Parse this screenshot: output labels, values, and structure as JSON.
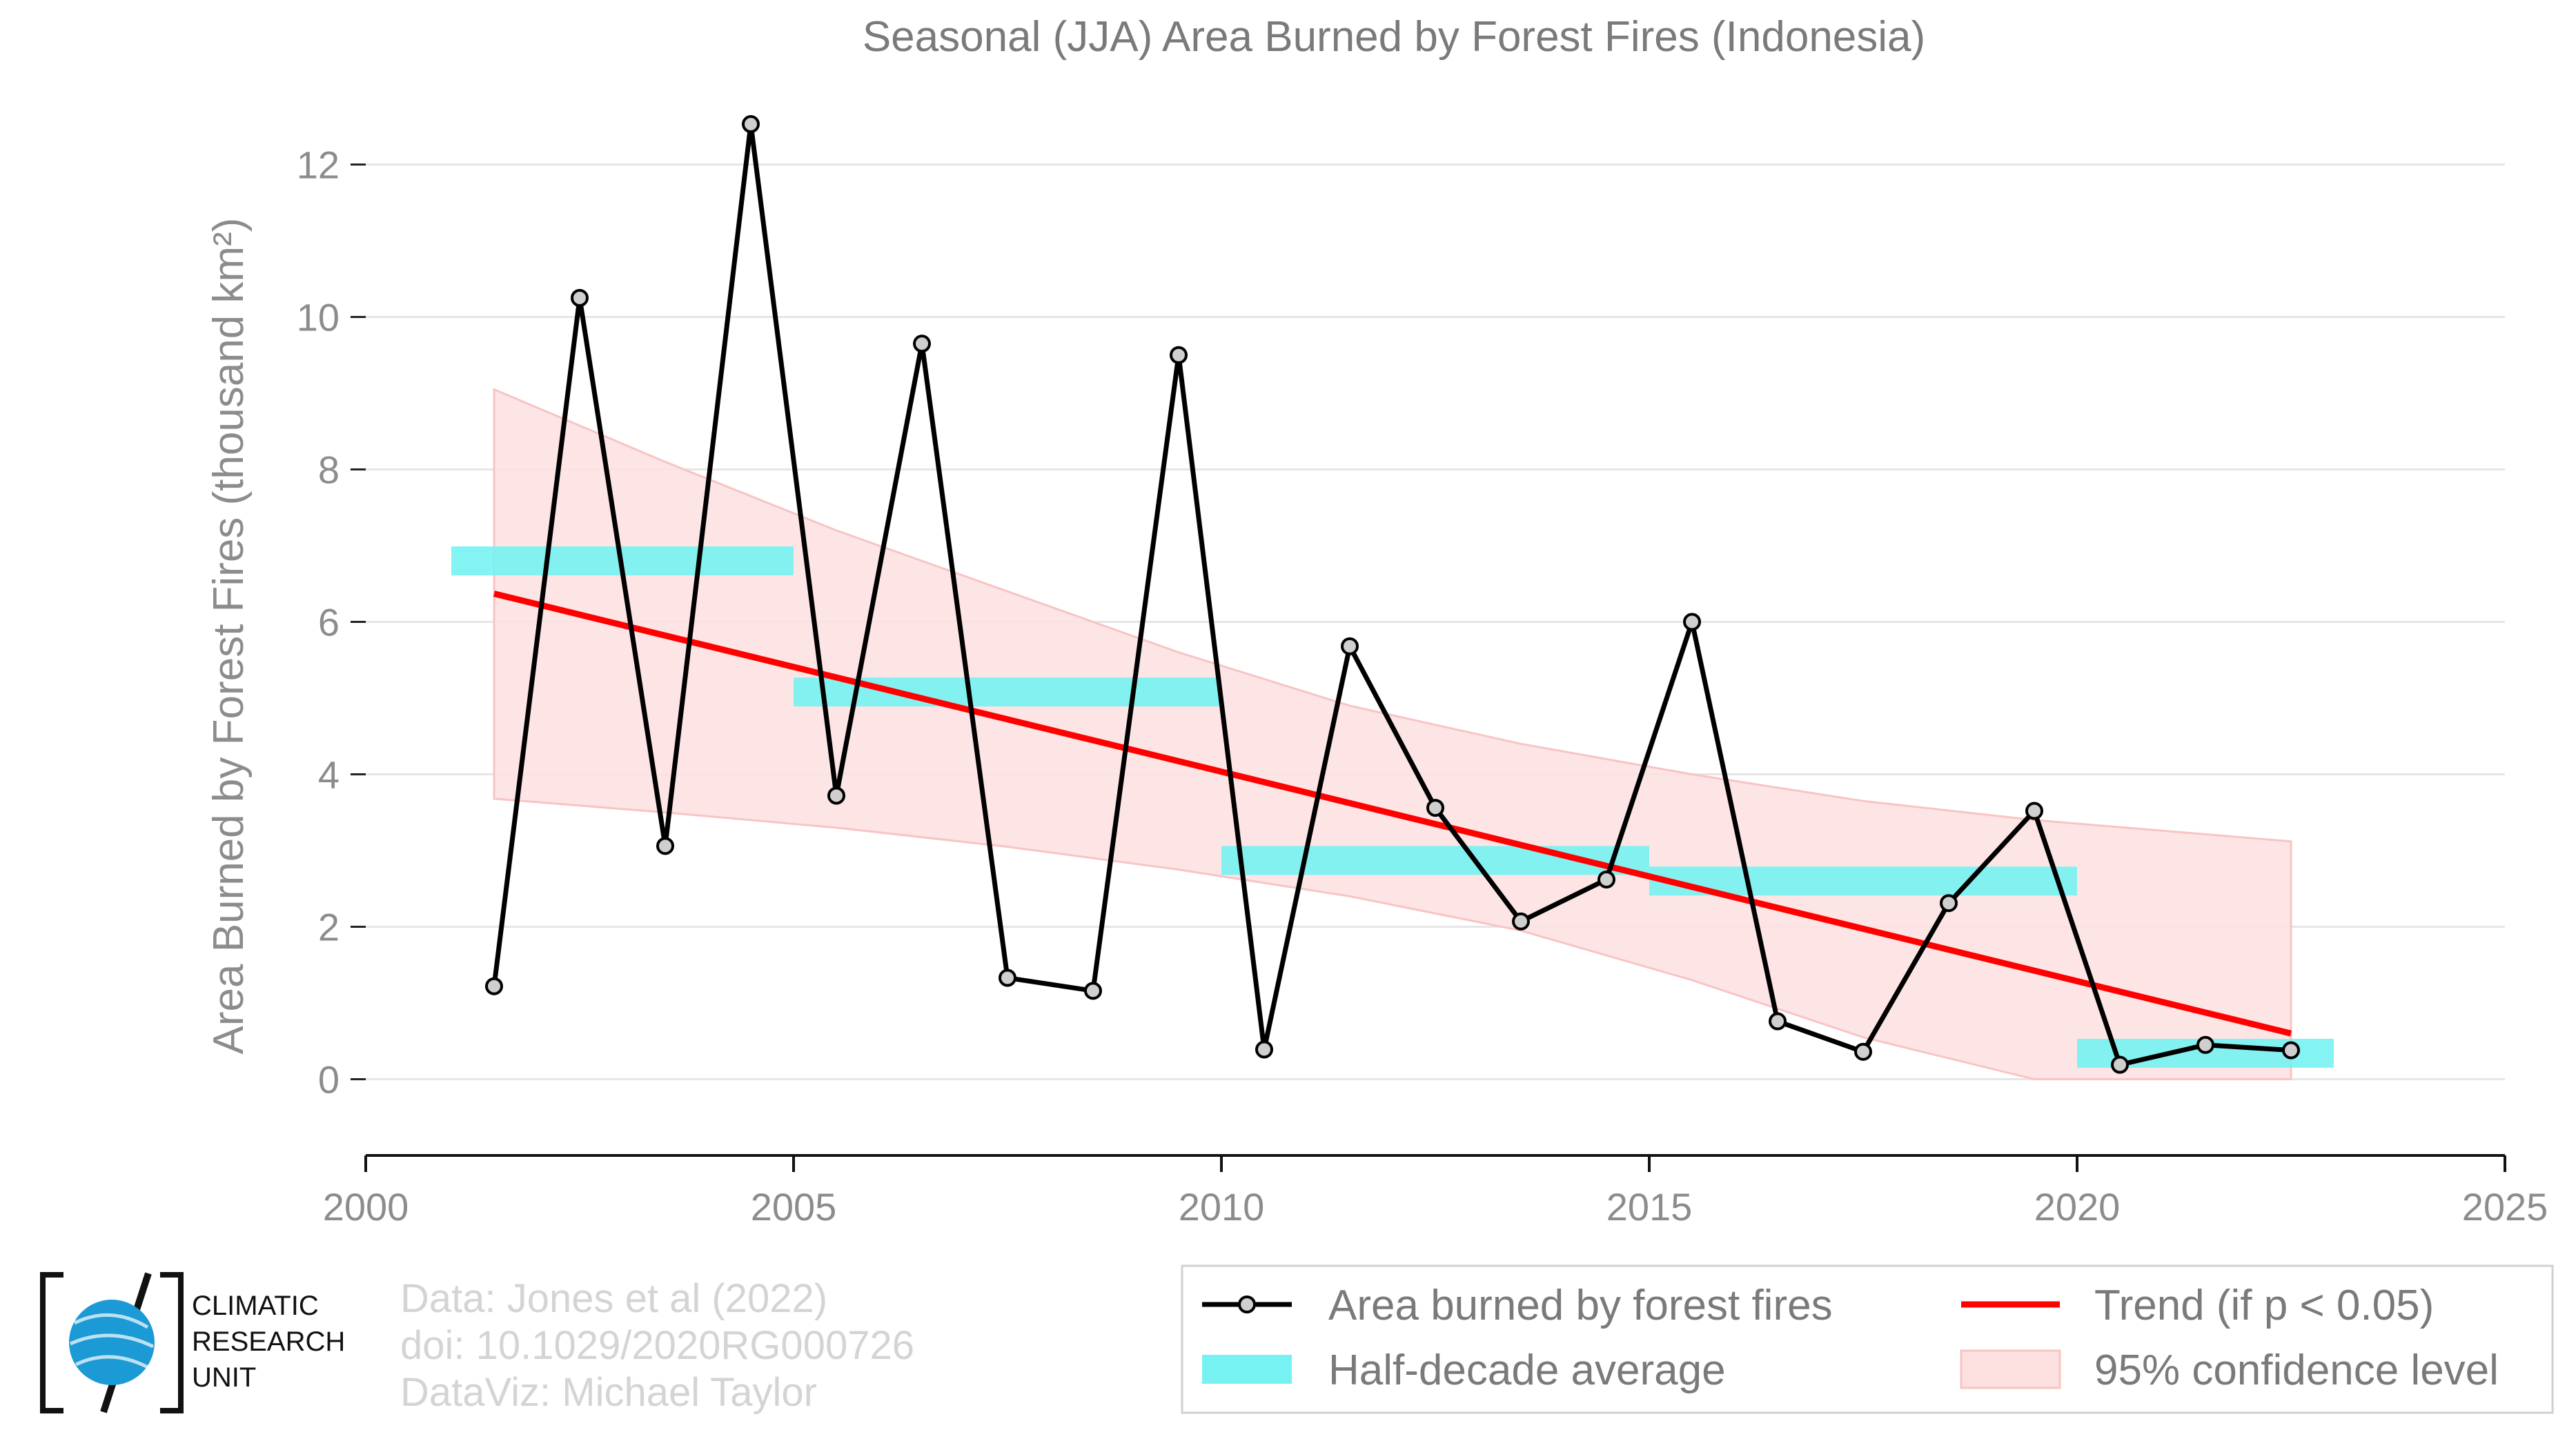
{
  "colors": {
    "series": "#000000",
    "marker_fill": "#cfcfcf",
    "half_decade": "#77f2f2",
    "trend": "#ff0000",
    "confidence": "#fde0e0",
    "confidence_edge": "#f8c4c4"
  },
  "chart_data": {
    "type": "line",
    "title": "Seasonal (JJA) Area Burned by Forest Fires (Indonesia)",
    "ylabel": "Area Burned by Forest Fires (thousand km²)",
    "xlabel": "",
    "xlim": [
      2000,
      2025
    ],
    "ylim": [
      -1,
      13
    ],
    "xticks": [
      2000,
      2005,
      2010,
      2015,
      2020,
      2025
    ],
    "yticks": [
      0,
      2,
      4,
      6,
      8,
      10,
      12
    ],
    "grid": true,
    "series": [
      {
        "name": "Area burned by forest fires",
        "x": [
          2001.5,
          2002.5,
          2003.5,
          2004.5,
          2005.5,
          2006.5,
          2007.5,
          2008.5,
          2009.5,
          2010.5,
          2011.5,
          2012.5,
          2013.5,
          2014.5,
          2015.5,
          2016.5,
          2017.5,
          2018.5,
          2019.5,
          2020.5,
          2021.5,
          2022.5
        ],
        "y": [
          1.22,
          10.25,
          3.06,
          12.53,
          3.72,
          9.65,
          1.33,
          1.16,
          9.5,
          0.39,
          5.68,
          3.56,
          2.07,
          2.62,
          6.0,
          0.76,
          0.36,
          2.31,
          3.52,
          0.19,
          0.45,
          0.38
        ]
      }
    ],
    "half_decade_average": [
      {
        "x0": 2001,
        "x1": 2005,
        "value": 6.8
      },
      {
        "x0": 2005,
        "x1": 2010,
        "value": 5.08
      },
      {
        "x0": 2010,
        "x1": 2015,
        "value": 2.87
      },
      {
        "x0": 2015,
        "x1": 2020,
        "value": 2.6
      },
      {
        "x0": 2020,
        "x1": 2023,
        "value": 0.34
      }
    ],
    "trend": {
      "x": [
        2001.5,
        2022.5
      ],
      "y": [
        6.37,
        0.6
      ]
    },
    "confidence_band": {
      "x": [
        2001.5,
        2003.5,
        2005.5,
        2007.5,
        2009.5,
        2011.5,
        2013.5,
        2015.5,
        2017.5,
        2019.5,
        2022.5
      ],
      "upper": [
        9.05,
        8.1,
        7.2,
        6.4,
        5.6,
        4.9,
        4.4,
        4.0,
        3.65,
        3.4,
        3.12
      ],
      "lower": [
        3.68,
        3.5,
        3.3,
        3.05,
        2.75,
        2.4,
        1.95,
        1.3,
        0.55,
        0.0,
        0.0
      ]
    },
    "legend": {
      "placement": "bottom-right",
      "items": [
        {
          "key": "series",
          "label": "Area burned by forest fires"
        },
        {
          "key": "trend",
          "label": "Trend (if p < 0.05)"
        },
        {
          "key": "half_decade",
          "label": "Half-decade average"
        },
        {
          "key": "confidence",
          "label": "95% confidence level"
        }
      ]
    }
  },
  "credits": {
    "line1": "Data: Jones et al (2022)",
    "line2": "doi: 10.1029/2020RG000726",
    "line3": "DataViz: Michael Taylor"
  },
  "logo": {
    "line1": "CLIMATIC",
    "line2": "RESEARCH",
    "line3": "UNIT"
  }
}
